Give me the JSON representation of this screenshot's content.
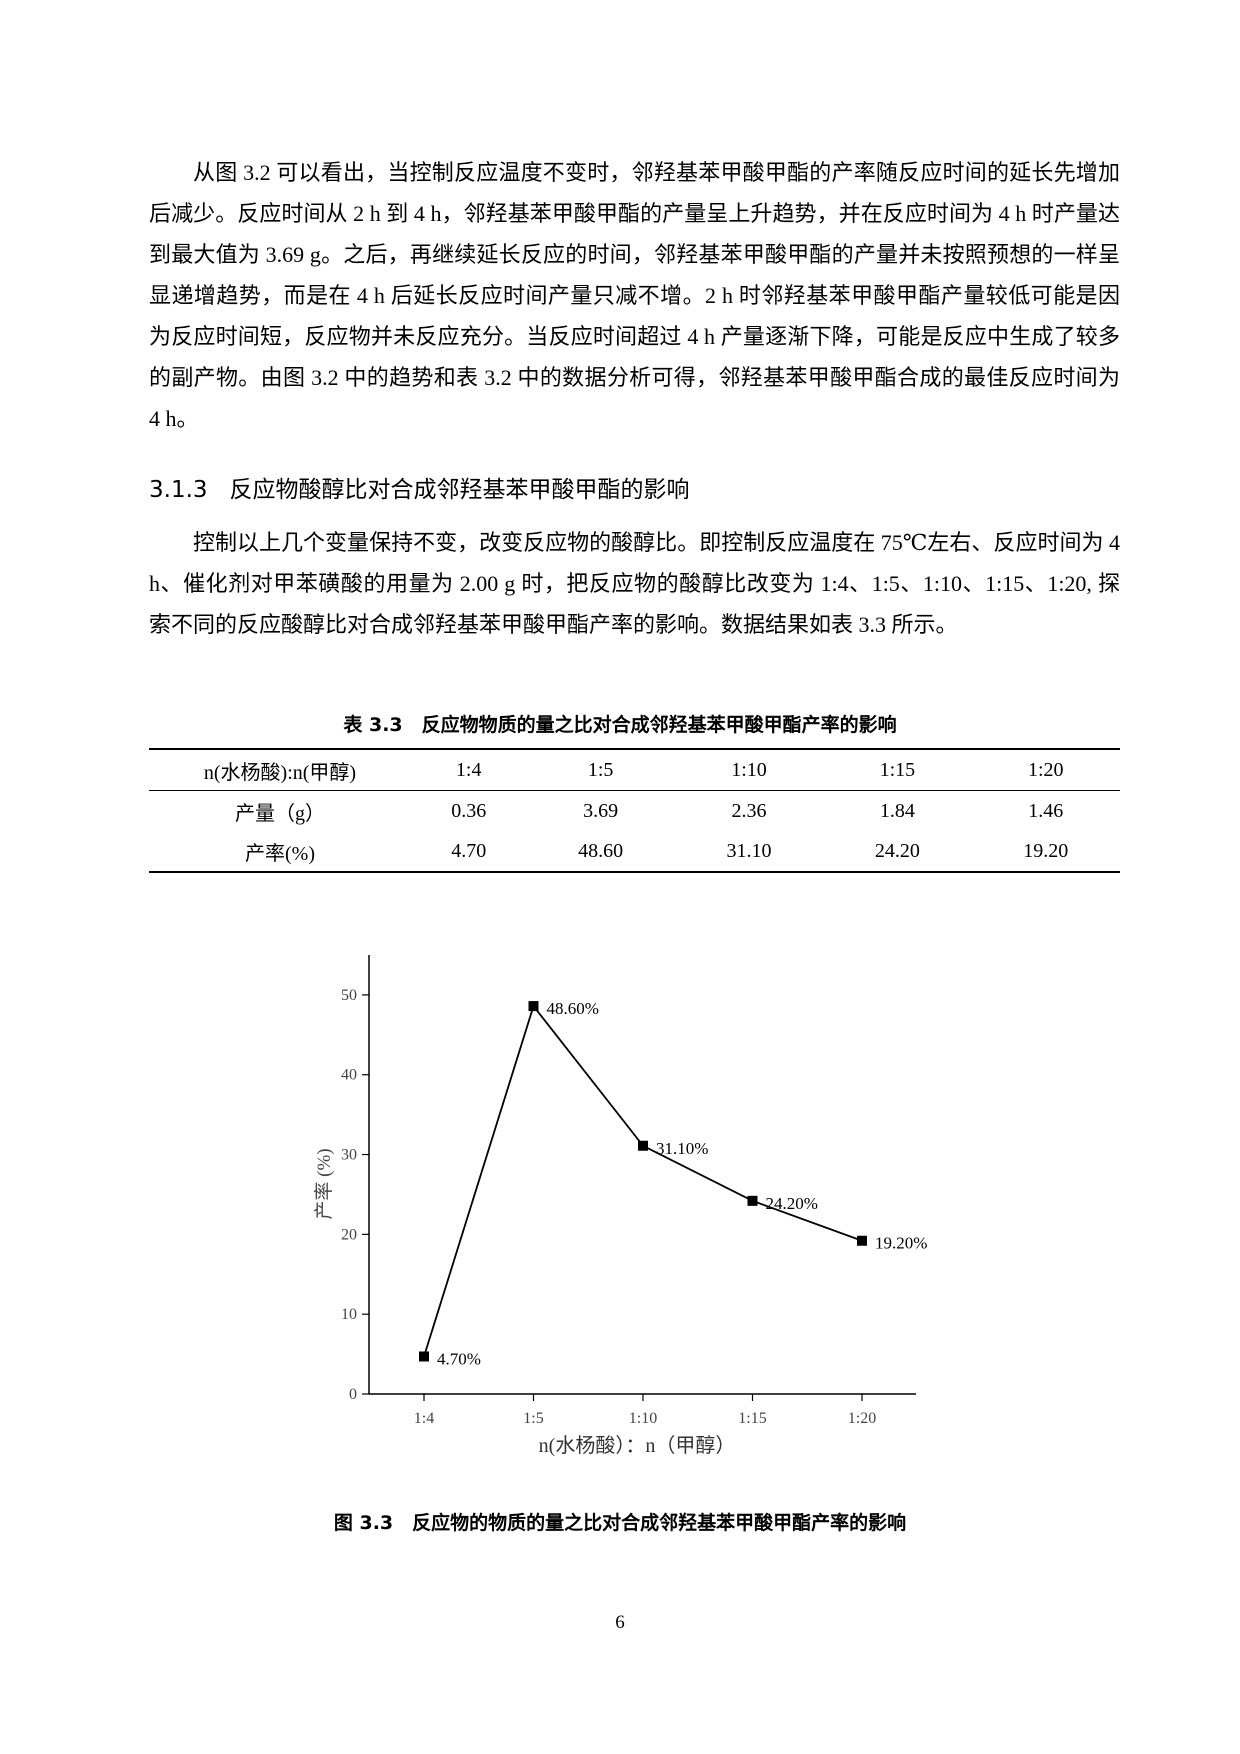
{
  "paragraphs": [
    "从图 3.2 可以看出，当控制反应温度不变时，邻羟基苯甲酸甲酯的产率随反应时间的延长先增加后减少。反应时间从 2 h 到 4 h，邻羟基苯甲酸甲酯的产量呈上升趋势，并在反应时间为 4 h 时产量达到最大值为 3.69 g。之后，再继续延长反应的时间，邻羟基苯甲酸甲酯的产量并未按照预想的一样呈显递增趋势，而是在 4 h 后延长反应时间产量只减不增。2 h 时邻羟基苯甲酸甲酯产量较低可能是因为反应时间短，反应物并未反应充分。当反应时间超过 4 h 产量逐渐下降，可能是反应中生成了较多的副产物。由图 3.2 中的趋势和表 3.2 中的数据分析可得，邻羟基苯甲酸甲酯合成的最佳反应时间为 4 h。",
    "控制以上几个变量保持不变，改变反应物的酸醇比。即控制反应温度在 75℃左右、反应时间为 4 h、催化剂对甲苯磺酸的用量为 2.00 g 时，把反应物的酸醇比改变为 1:4、1:5、1:10、1:15、1:20, 探索不同的反应酸醇比对合成邻羟基苯甲酸甲酯产率的影响。数据结果如表 3.3 所示。"
  ],
  "heading": {
    "number": "3.1.3",
    "title": "反应物酸醇比对合成邻羟基苯甲酸甲酯的影响"
  },
  "table": {
    "caption": "表 3.3　反应物物质的量之比对合成邻羟基苯甲酸甲酯产率的影响",
    "header": [
      "n(水杨酸):n(甲醇)",
      "1:4",
      "1:5",
      "1:10",
      "1:15",
      "1:20"
    ],
    "rows": [
      [
        "产量（g）",
        "0.36",
        "3.69",
        "2.36",
        "1.84",
        "1.46"
      ],
      [
        "产率(%)",
        "4.70",
        "48.60",
        "31.10",
        "24.20",
        "19.20"
      ]
    ]
  },
  "chart_data": {
    "type": "line",
    "x_label": "n(水杨酸）：n（甲醇）",
    "y_label": "产率 (%)",
    "categories": [
      "1:4",
      "1:5",
      "1:10",
      "1:15",
      "1:20"
    ],
    "values": [
      4.7,
      48.6,
      31.1,
      24.2,
      19.2
    ],
    "value_labels": [
      "4.70%",
      "48.60%",
      "31.10%",
      "24.20%",
      "19.20%"
    ],
    "color": "#000000",
    "ylim": [
      0,
      55
    ],
    "yticks": [
      0,
      10,
      20,
      30,
      40,
      50
    ]
  },
  "figure_caption": "图 3.3　反应物的物质的量之比对合成邻羟基苯甲酸甲酯产率的影响",
  "page_number": "6"
}
